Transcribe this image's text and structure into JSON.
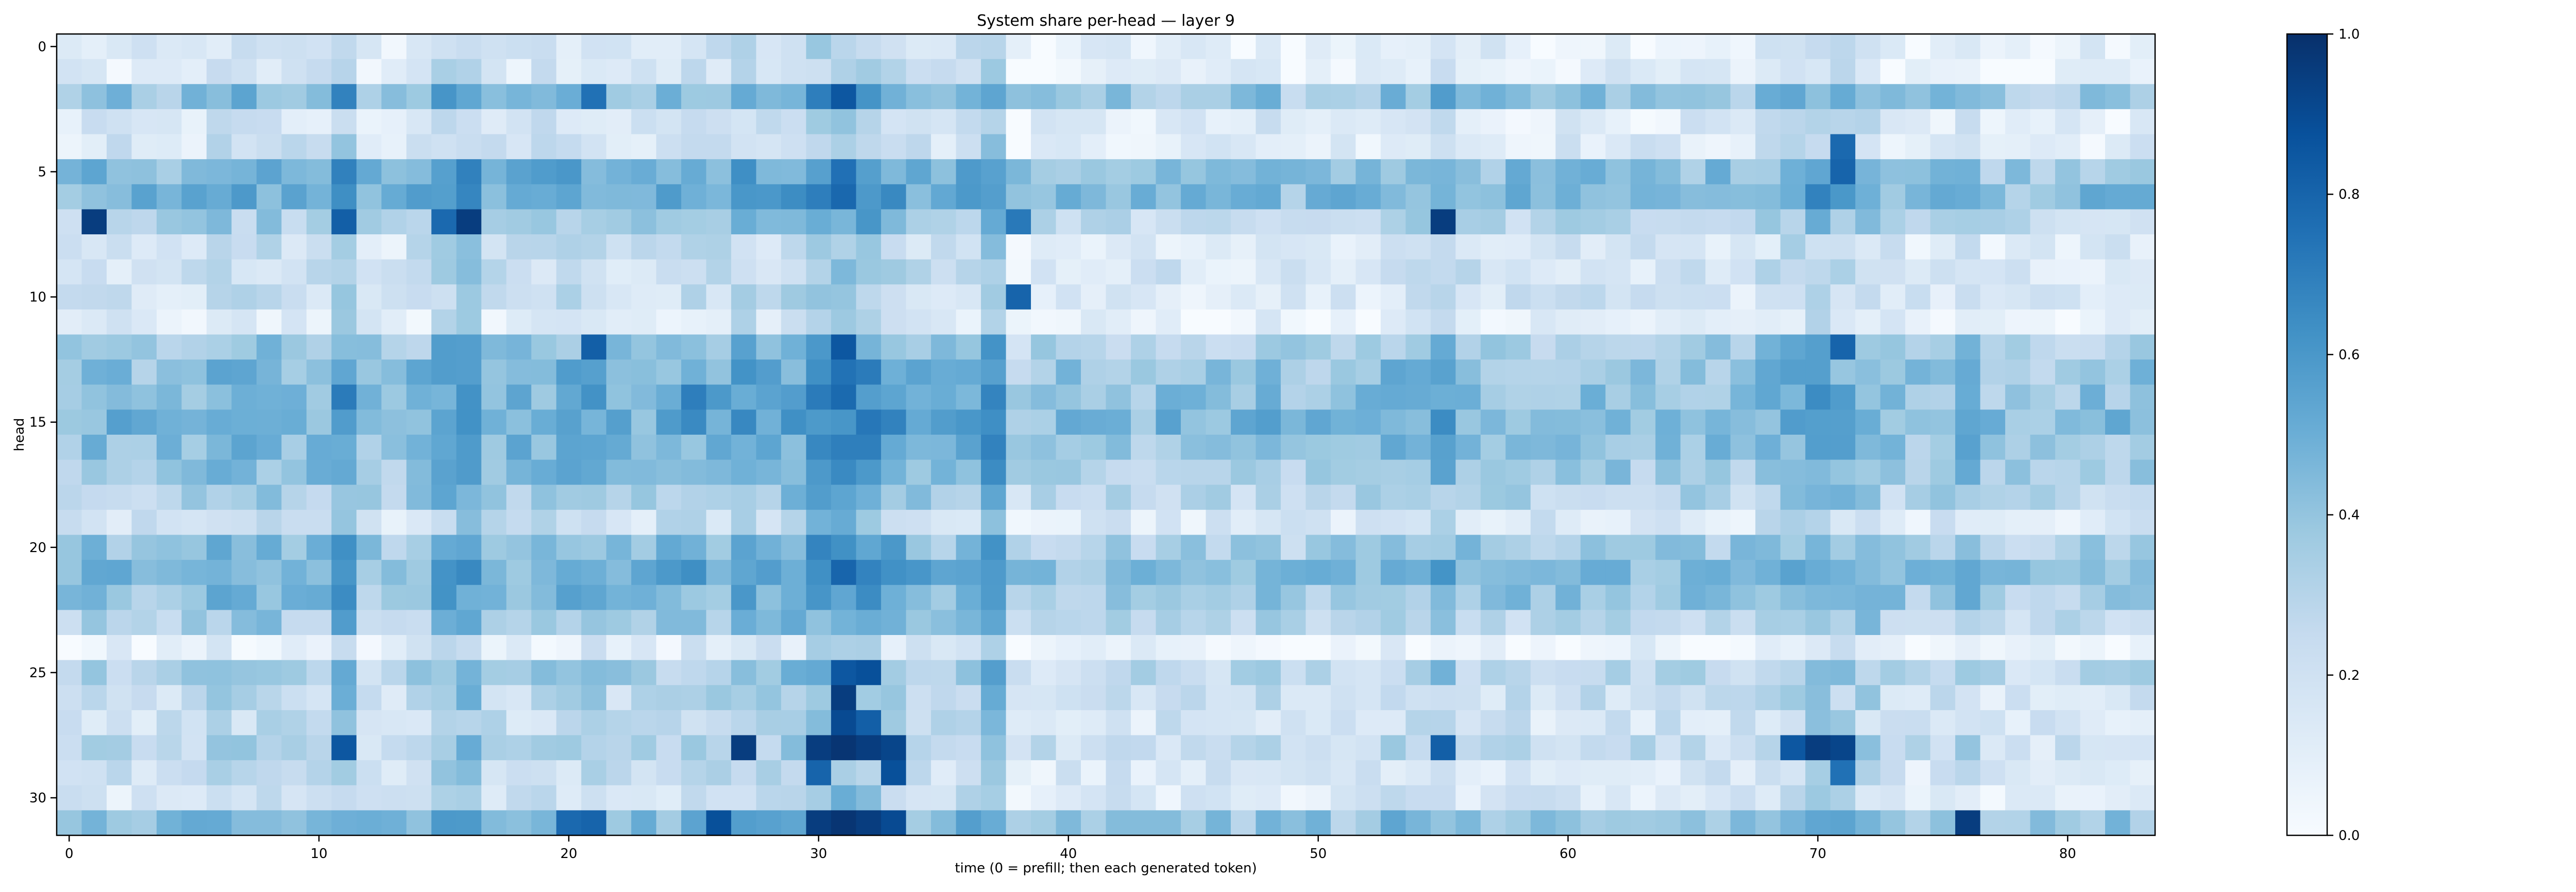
{
  "chart_data": {
    "type": "heatmap",
    "title": "System share per-head — layer 9",
    "xlabel": "time (0 = prefill; then each generated token)",
    "ylabel": "head",
    "n_cols": 84,
    "n_rows": 32,
    "x_ticks": [
      0,
      10,
      20,
      30,
      40,
      50,
      60,
      70,
      80
    ],
    "y_ticks": [
      0,
      5,
      10,
      15,
      20,
      25,
      30
    ],
    "colormap": "Blues",
    "vmin": 0.0,
    "vmax": 1.0,
    "colorbar_ticks": [
      "0.0",
      "0.2",
      "0.4",
      "0.6",
      "0.8",
      "1.0"
    ],
    "row_base": [
      0.1,
      0.1,
      0.38,
      0.12,
      0.14,
      0.42,
      0.45,
      0.28,
      0.16,
      0.18,
      0.16,
      0.08,
      0.34,
      0.4,
      0.42,
      0.45,
      0.4,
      0.36,
      0.3,
      0.16,
      0.36,
      0.44,
      0.38,
      0.3,
      0.05,
      0.28,
      0.22,
      0.18,
      0.24,
      0.16,
      0.14,
      0.4
    ],
    "col_base": [
      0.0,
      0.04,
      0.02,
      0.0,
      0.0,
      0.02,
      0.08,
      0.06,
      0.06,
      0.04,
      0.04,
      0.2,
      0.0,
      0.0,
      0.04,
      0.16,
      0.2,
      0.04,
      0.04,
      0.06,
      0.08,
      0.1,
      0.04,
      0.04,
      0.06,
      0.1,
      0.08,
      0.14,
      0.08,
      0.12,
      0.22,
      0.26,
      0.22,
      0.14,
      0.06,
      0.04,
      0.08,
      0.2,
      -0.06,
      -0.04,
      -0.02,
      -0.02,
      0.0,
      -0.02,
      0.0,
      -0.02,
      -0.02,
      -0.02,
      0.02,
      -0.04,
      -0.02,
      -0.02,
      0.0,
      0.04,
      0.02,
      0.1,
      0.02,
      0.0,
      0.0,
      0.0,
      0.0,
      0.02,
      0.0,
      0.0,
      0.0,
      0.0,
      0.0,
      0.0,
      0.04,
      0.1,
      0.14,
      0.1,
      0.08,
      0.0,
      -0.02,
      0.0,
      0.06,
      -0.04,
      -0.04,
      -0.04,
      -0.04,
      -0.02,
      -0.02,
      0.0
    ],
    "hot_cells": [
      [
        7,
        1,
        0.95
      ],
      [
        7,
        16,
        0.95
      ],
      [
        7,
        55,
        0.95
      ],
      [
        7,
        15,
        0.78
      ],
      [
        7,
        11,
        0.82
      ],
      [
        2,
        31,
        0.85
      ],
      [
        2,
        21,
        0.75
      ],
      [
        2,
        30,
        0.7
      ],
      [
        4,
        71,
        0.78
      ],
      [
        5,
        71,
        0.8
      ],
      [
        12,
        21,
        0.82
      ],
      [
        12,
        31,
        0.85
      ],
      [
        12,
        71,
        0.8
      ],
      [
        14,
        25,
        0.7
      ],
      [
        25,
        31,
        0.85
      ],
      [
        25,
        32,
        0.88
      ],
      [
        26,
        31,
        0.95
      ],
      [
        27,
        31,
        0.9
      ],
      [
        27,
        32,
        0.82
      ],
      [
        28,
        11,
        0.85
      ],
      [
        28,
        27,
        0.95
      ],
      [
        28,
        30,
        0.95
      ],
      [
        28,
        31,
        0.98
      ],
      [
        28,
        32,
        0.95
      ],
      [
        28,
        33,
        0.92
      ],
      [
        28,
        55,
        0.82
      ],
      [
        28,
        70,
        0.95
      ],
      [
        28,
        71,
        0.92
      ],
      [
        28,
        69,
        0.85
      ],
      [
        29,
        33,
        0.88
      ],
      [
        29,
        30,
        0.8
      ],
      [
        29,
        71,
        0.75
      ],
      [
        31,
        26,
        0.88
      ],
      [
        31,
        30,
        0.95
      ],
      [
        31,
        31,
        0.98
      ],
      [
        31,
        32,
        0.95
      ],
      [
        31,
        33,
        0.9
      ],
      [
        31,
        76,
        0.95
      ],
      [
        31,
        21,
        0.8
      ],
      [
        31,
        20,
        0.78
      ],
      [
        10,
        38,
        0.8
      ],
      [
        7,
        38,
        0.72
      ]
    ]
  }
}
